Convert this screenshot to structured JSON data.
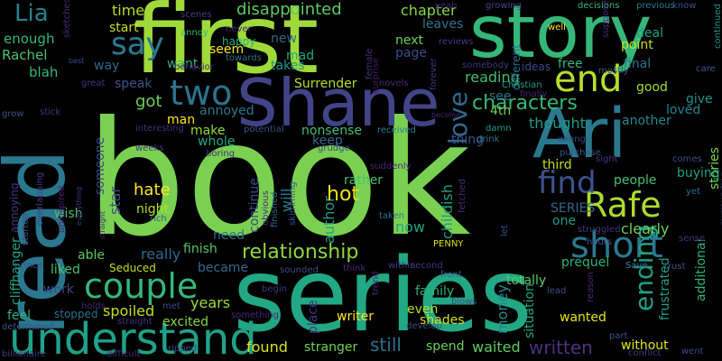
{
  "words": [
    {
      "text": "book",
      "color": "#7ad151"
    },
    {
      "text": "series",
      "color": "#22a884"
    },
    {
      "text": "first",
      "color": "#9fda3a"
    },
    {
      "text": "read",
      "color": "#2a788e"
    },
    {
      "text": "story",
      "color": "#35b779"
    },
    {
      "text": "Shane",
      "color": "#414487"
    },
    {
      "text": "Ari",
      "color": "#2a788e"
    },
    {
      "text": "understand",
      "color": "#1fa187"
    },
    {
      "text": "end",
      "color": "#b5de2b"
    },
    {
      "text": "short",
      "color": "#2a788e"
    },
    {
      "text": "Rafe",
      "color": "#addc30"
    },
    {
      "text": "couple",
      "color": "#35b779"
    },
    {
      "text": "two",
      "color": "#2c728e"
    },
    {
      "text": "find",
      "color": "#3b528b"
    },
    {
      "text": "say",
      "color": "#2a788e"
    },
    {
      "text": "ending",
      "color": "#1fa187"
    },
    {
      "text": "love",
      "color": "#31688e"
    },
    {
      "text": "Lia",
      "color": "#26828e"
    },
    {
      "text": "relationship",
      "color": "#90d743"
    },
    {
      "text": "characters",
      "color": "#35b779"
    },
    {
      "text": "hate",
      "color": "#fde725"
    },
    {
      "text": "disappointed",
      "color": "#5ec962"
    },
    {
      "text": "chapter",
      "color": "#84d44b"
    },
    {
      "text": "time",
      "color": "#b5de2b"
    },
    {
      "text": "enough",
      "color": "#35b779"
    },
    {
      "text": "Rachel",
      "color": "#4ac16d"
    },
    {
      "text": "blah",
      "color": "#35b779"
    },
    {
      "text": "author",
      "color": "#1f9e89"
    },
    {
      "text": "will",
      "color": "#277f8e"
    },
    {
      "text": "hot",
      "color": "#e5e419"
    },
    {
      "text": "childish",
      "color": "#1e9c89"
    },
    {
      "text": "money",
      "color": "#23898e"
    },
    {
      "text": "spoiled",
      "color": "#c2df23"
    },
    {
      "text": "really",
      "color": "#31688e"
    },
    {
      "text": "found",
      "color": "#d8e219"
    },
    {
      "text": "still",
      "color": "#2c728e"
    },
    {
      "text": "written",
      "color": "#46337e"
    },
    {
      "text": "waited",
      "color": "#5ec962"
    },
    {
      "text": "stranger",
      "color": "#75d054"
    },
    {
      "text": "writer",
      "color": "#fde725"
    },
    {
      "text": "place",
      "color": "#46337e"
    },
    {
      "text": "excited",
      "color": "#86d549"
    },
    {
      "text": "years",
      "color": "#a0da39"
    },
    {
      "text": "feel",
      "color": "#2db27d"
    },
    {
      "text": "work",
      "color": "#3e4c8a"
    },
    {
      "text": "liked",
      "color": "#4ac16d"
    },
    {
      "text": "Seduced",
      "color": "#c0df25"
    },
    {
      "text": "became",
      "color": "#31688e"
    },
    {
      "text": "finish",
      "color": "#52c569"
    },
    {
      "text": "continue",
      "color": "#3f4788"
    },
    {
      "text": "rather",
      "color": "#4ac16d"
    },
    {
      "text": "nonsense",
      "color": "#42be71"
    },
    {
      "text": "make",
      "color": "#9bd93c"
    },
    {
      "text": "got",
      "color": "#70cf57"
    },
    {
      "text": "speak",
      "color": "#3b528b"
    },
    {
      "text": "annoyed",
      "color": "#2a788e"
    },
    {
      "text": "man",
      "color": "#fde725"
    },
    {
      "text": "whole",
      "color": "#22a884"
    },
    {
      "text": "keep",
      "color": "#31688e"
    },
    {
      "text": "reading",
      "color": "#40bd72"
    },
    {
      "text": "next",
      "color": "#6ece58"
    },
    {
      "text": "page",
      "color": "#3e4c8a"
    },
    {
      "text": "leaves",
      "color": "#2c728e"
    },
    {
      "text": "free",
      "color": "#35b779"
    },
    {
      "text": "final",
      "color": "#2c728e"
    },
    {
      "text": "deal",
      "color": "#1fa187"
    },
    {
      "text": "point",
      "color": "#cae11f"
    },
    {
      "text": "good",
      "color": "#a5db36"
    },
    {
      "text": "loved",
      "color": "#25848e"
    },
    {
      "text": "give",
      "color": "#1f948c"
    },
    {
      "text": "thought",
      "color": "#1f9a8a"
    },
    {
      "text": "another",
      "color": "#25858e"
    },
    {
      "text": "stories",
      "color": "#7fd34e"
    },
    {
      "text": "buying",
      "color": "#1fa088"
    },
    {
      "text": "people",
      "color": "#46c06f"
    },
    {
      "text": "third",
      "color": "#c2df23"
    },
    {
      "text": "one",
      "color": "#1e9b8a"
    },
    {
      "text": "clearly",
      "color": "#70cf57"
    },
    {
      "text": "additional",
      "color": "#2db27d"
    },
    {
      "text": "frustrated",
      "color": "#1f9e89"
    },
    {
      "text": "situation",
      "color": "#22a884"
    },
    {
      "text": "wanted",
      "color": "#e5e419"
    },
    {
      "text": "even",
      "color": "#b8de29"
    },
    {
      "text": "shades",
      "color": "#d2e21b"
    },
    {
      "text": "family",
      "color": "#2db27d"
    },
    {
      "text": "totally",
      "color": "#56c667"
    },
    {
      "text": "spend",
      "color": "#6ccd5a"
    },
    {
      "text": "without",
      "color": "#e2e418"
    },
    {
      "text": "now",
      "color": "#20a386"
    },
    {
      "text": "SERIES",
      "color": "#31688e"
    },
    {
      "text": "star",
      "color": "#3b528b"
    },
    {
      "text": "someone",
      "color": "#3e4a89"
    },
    {
      "text": "night",
      "color": "#b5de2b"
    },
    {
      "text": "say",
      "color": "#2a788e"
    },
    {
      "text": "wish",
      "color": "#4ac16d"
    },
    {
      "text": "annoying",
      "color": "#46337e"
    },
    {
      "text": "cliffhanger",
      "color": "#20a386"
    },
    {
      "text": "start",
      "color": "#c8e020"
    },
    {
      "text": "seem",
      "color": "#fde725"
    },
    {
      "text": "want",
      "color": "#35b779"
    },
    {
      "text": "new",
      "color": "#31688e"
    },
    {
      "text": "mad",
      "color": "#22a884"
    },
    {
      "text": "takes",
      "color": "#1f988b"
    },
    {
      "text": "happy",
      "color": "#27ad81"
    },
    {
      "text": "way",
      "color": "#31688e"
    },
    {
      "text": "see",
      "color": "#2a788e"
    },
    {
      "text": "4th",
      "color": "#6ece58"
    },
    {
      "text": "need",
      "color": "#2c728e"
    },
    {
      "text": "able",
      "color": "#5ec962"
    },
    {
      "text": "thing",
      "color": "#3b528b"
    },
    {
      "text": "PENNY",
      "color": "#d8e219"
    },
    {
      "text": "prequel",
      "color": "#2db27d"
    },
    {
      "text": "Save",
      "color": "#2a788e"
    },
    {
      "text": "scenes",
      "color": "#433e85"
    },
    {
      "text": "decisions",
      "color": "#35b779"
    },
    {
      "text": "previous",
      "color": "#2a788e"
    },
    {
      "text": "know",
      "color": "#3b528b"
    },
    {
      "text": "yeah",
      "color": "#482475"
    },
    {
      "text": "growing",
      "color": "#3e4989"
    },
    {
      "text": "annoy",
      "color": "#35b779"
    },
    {
      "text": "never",
      "color": "#482878"
    },
    {
      "text": "behavior",
      "color": "#482475"
    },
    {
      "text": "towards",
      "color": "#2d708e"
    },
    {
      "text": "Surrender",
      "color": "#b5de2b"
    },
    {
      "text": "novels",
      "color": "#472c7a"
    },
    {
      "text": "surprise",
      "color": "#481b6d"
    },
    {
      "text": "female",
      "color": "#46327e"
    },
    {
      "text": "reviews",
      "color": "#453882"
    },
    {
      "text": "somebody",
      "color": "#46337e"
    },
    {
      "text": "ideas",
      "color": "#3e4989"
    },
    {
      "text": "different",
      "color": "#2d708e"
    },
    {
      "text": "supposed",
      "color": "#472d7b"
    },
    {
      "text": "care",
      "color": "#38588c"
    },
    {
      "text": "continued",
      "color": "#21918c"
    },
    {
      "text": "mostly",
      "color": "#3b528b"
    },
    {
      "text": "finally",
      "color": "#482173"
    },
    {
      "text": "Christian",
      "color": "#1f9e89"
    },
    {
      "text": "well",
      "color": "#fde725"
    },
    {
      "text": "best",
      "color": "#3e4989"
    },
    {
      "text": "great",
      "color": "#46337e"
    },
    {
      "text": "sketches",
      "color": "#482878"
    },
    {
      "text": "grow",
      "color": "#3b528b"
    },
    {
      "text": "stick",
      "color": "#46327e"
    },
    {
      "text": "interesting",
      "color": "#472d7b"
    },
    {
      "text": "potential",
      "color": "#3b528b"
    },
    {
      "text": "received",
      "color": "#287d8e"
    },
    {
      "text": "damn",
      "color": "#1f988b"
    },
    {
      "text": "drink",
      "color": "#2a788e"
    },
    {
      "text": "wrong",
      "color": "#3e4a89"
    },
    {
      "text": "forever",
      "color": "#472f7d"
    },
    {
      "text": "become",
      "color": "#482475"
    },
    {
      "text": "surrounding",
      "color": "#3b528b"
    },
    {
      "text": "weeks",
      "color": "#46337e"
    },
    {
      "text": "boring",
      "color": "#482878"
    },
    {
      "text": "grudge",
      "color": "#3e4989"
    },
    {
      "text": "suddenly",
      "color": "#482475"
    },
    {
      "text": "purchase",
      "color": "#3b528b"
    },
    {
      "text": "sight",
      "color": "#46337e"
    },
    {
      "text": "comes",
      "color": "#3e4989"
    },
    {
      "text": "yet",
      "color": "#31688e"
    },
    {
      "text": "hours",
      "color": "#3b528b"
    },
    {
      "text": "struggled",
      "color": "#46337e"
    },
    {
      "text": "fetched",
      "color": "#482878"
    },
    {
      "text": "obvious",
      "color": "#472d7b"
    },
    {
      "text": "finished",
      "color": "#2d708e"
    },
    {
      "text": "skimming",
      "color": "#3b528b"
    },
    {
      "text": "taken",
      "color": "#2c728e"
    },
    {
      "text": "let",
      "color": "#3e4989"
    },
    {
      "text": "overlapping",
      "color": "#433e85"
    },
    {
      "text": "uninspired",
      "color": "#482475"
    },
    {
      "text": "everything",
      "color": "#46327e"
    },
    {
      "text": "rich",
      "color": "#3b528b"
    },
    {
      "text": "straight",
      "color": "#482878"
    },
    {
      "text": "started",
      "color": "#3e4a89"
    },
    {
      "text": "prince",
      "color": "#3b528b"
    },
    {
      "text": "begin",
      "color": "#46337e"
    },
    {
      "text": "sounded",
      "color": "#3e4989"
    },
    {
      "text": "think",
      "color": "#482878"
    },
    {
      "text": "within",
      "color": "#453882"
    },
    {
      "text": "second",
      "color": "#46327e"
    },
    {
      "text": "front",
      "color": "#3b528b"
    },
    {
      "text": "blows",
      "color": "#3e4989"
    },
    {
      "text": "trend",
      "color": "#482475"
    },
    {
      "text": "develop",
      "color": "#3b528b"
    },
    {
      "text": "lead",
      "color": "#3e4989"
    },
    {
      "text": "reason",
      "color": "#482878"
    },
    {
      "text": "trust",
      "color": "#3b528b"
    },
    {
      "text": "sense",
      "color": "#46337e"
    },
    {
      "text": "stopped",
      "color": "#2d708e"
    },
    {
      "text": "holds",
      "color": "#482878"
    },
    {
      "text": "met",
      "color": "#3e4989"
    },
    {
      "text": "straight",
      "color": "#46337e"
    },
    {
      "text": "something",
      "color": "#482475"
    },
    {
      "text": "part",
      "color": "#3b528b"
    },
    {
      "text": "conflict",
      "color": "#46337e"
    },
    {
      "text": "went",
      "color": "#3e4989"
    },
    {
      "text": "determined",
      "color": "#3b528b"
    },
    {
      "text": "billionaire",
      "color": "#46327e"
    },
    {
      "text": "difficult",
      "color": "#482878"
    },
    {
      "text": "ripped",
      "color": "#3e4989"
    },
    {
      "text": "Save",
      "color": "#31688e"
    }
  ]
}
